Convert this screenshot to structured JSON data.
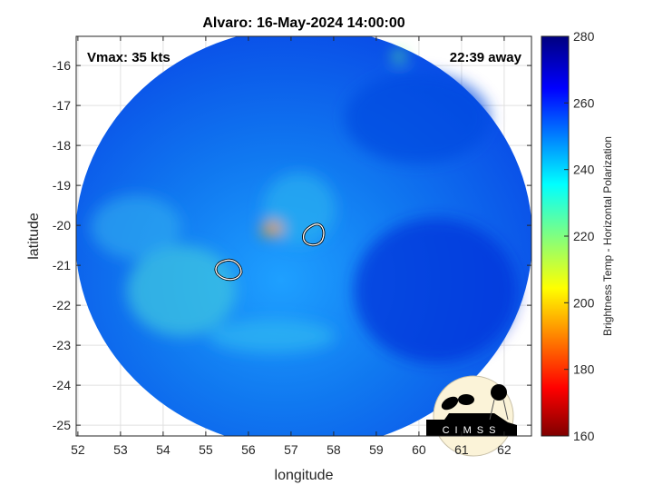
{
  "title": "Alvaro: 16-May-2024 14:00:00",
  "annotations": {
    "vmax": "Vmax: 35 kts",
    "away": "22:39 away"
  },
  "xaxis": {
    "label": "longitude",
    "ticks": [
      "52",
      "53",
      "54",
      "55",
      "56",
      "57",
      "58",
      "59",
      "60",
      "61",
      "62"
    ],
    "values": [
      52,
      53,
      54,
      55,
      56,
      57,
      58,
      59,
      60,
      61,
      62
    ],
    "range": [
      51.96,
      62.64
    ]
  },
  "yaxis": {
    "label": "latitude",
    "ticks": [
      "-16",
      "-17",
      "-18",
      "-19",
      "-20",
      "-21",
      "-22",
      "-23",
      "-24",
      "-25"
    ],
    "values": [
      -16,
      -17,
      -18,
      -19,
      -20,
      -21,
      -22,
      -23,
      -24,
      -25
    ],
    "range": [
      -25.27,
      -15.27
    ]
  },
  "colorbar": {
    "label": "Brightness Temp - Horizontal Polarization",
    "ticks": [
      "160",
      "180",
      "200",
      "220",
      "240",
      "260",
      "280"
    ],
    "values": [
      160,
      180,
      200,
      220,
      240,
      260,
      280
    ],
    "range": [
      160,
      280
    ],
    "colormap": "jet"
  },
  "grid": true,
  "logo": "CIMSS",
  "features": [
    {
      "name": "center-contour-1",
      "lon": 57.6,
      "lat": -20.2
    },
    {
      "name": "center-contour-2",
      "lon": 55.6,
      "lat": -21.05
    }
  ]
}
